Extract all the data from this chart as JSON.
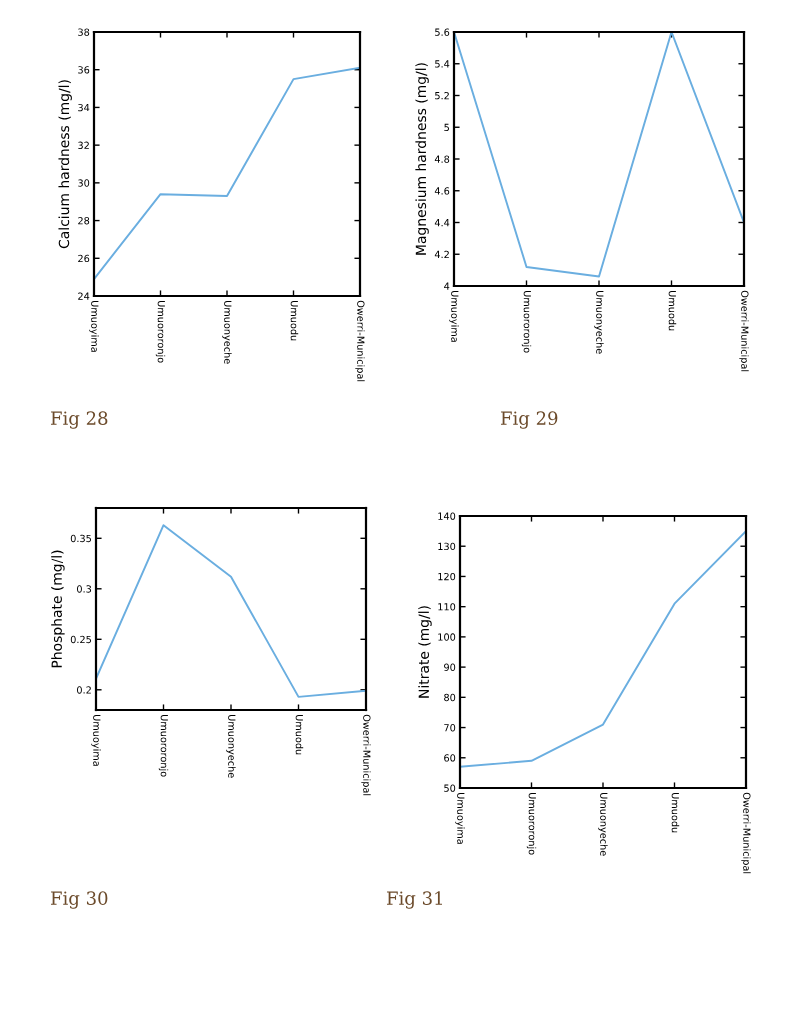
{
  "chart_data": [
    {
      "type": "line",
      "ylabel": "Calcium hardness (mg/l)",
      "categories": [
        "Umuoyima",
        "Umuororonjo",
        "Umuonyeche",
        "Umuodu",
        "Owerri-Municipal"
      ],
      "series": [
        {
          "color": "#6aaee0",
          "values": [
            24.9,
            29.4,
            29.3,
            35.5,
            36.1
          ]
        }
      ],
      "ylim": [
        24,
        38
      ],
      "yticks": [
        24,
        26,
        28,
        30,
        32,
        34,
        36,
        38
      ],
      "annotations": [
        "Fig 28"
      ]
    },
    {
      "type": "line",
      "ylabel": "Magnesium hardness (mg/l)",
      "categories": [
        "Umuoyima",
        "Umuororonjo",
        "Umuonyeche",
        "Umuodu",
        "Owerri-Municipal"
      ],
      "series": [
        {
          "color": "#6aaee0",
          "values": [
            5.6,
            4.12,
            4.06,
            5.6,
            4.4
          ]
        }
      ],
      "ylim": [
        4,
        5.6
      ],
      "yticks": [
        4,
        4.2,
        4.4,
        4.6,
        4.8,
        5,
        5.2,
        5.4,
        5.6
      ],
      "annotations": [
        "Fig 29"
      ]
    },
    {
      "type": "line",
      "ylabel": "Phosphate (mg/l)",
      "categories": [
        "Umuoyima",
        "Umuororonjo",
        "Umuonyeche",
        "Umuodu",
        "Owerri-Municipal"
      ],
      "series": [
        {
          "color": "#6aaee0",
          "values": [
            0.211,
            0.363,
            0.312,
            0.193,
            0.199
          ]
        }
      ],
      "ylim": [
        0.18,
        0.38
      ],
      "yticks": [
        0.2,
        0.25,
        0.3,
        0.35
      ],
      "annotations": [
        "Fig 30"
      ]
    },
    {
      "type": "line",
      "ylabel": "Nitrate (mg/l)",
      "categories": [
        "Umuoyima",
        "Umuororonjo",
        "Umuonyeche",
        "Umuodu",
        "Owerri-Municipal"
      ],
      "series": [
        {
          "color": "#6aaee0",
          "values": [
            57,
            59,
            71,
            111,
            135
          ]
        }
      ],
      "ylim": [
        50,
        140
      ],
      "yticks": [
        50,
        60,
        70,
        80,
        90,
        100,
        110,
        120,
        130,
        140
      ],
      "annotations": [
        "Fig 31"
      ]
    }
  ]
}
